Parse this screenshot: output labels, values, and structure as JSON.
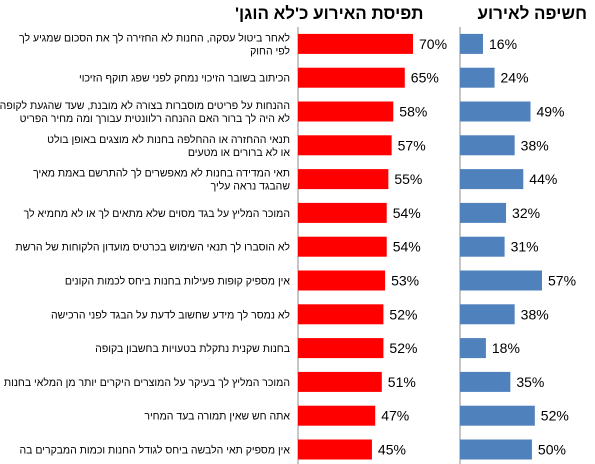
{
  "headings": {
    "exposure": "חשיפה לאירוע",
    "perception": "תפיסת האירוע כ'לא הוגן'"
  },
  "chart_data": {
    "type": "bar",
    "orientation": "horizontal",
    "categories": [
      [
        "לאחר ביטול עסקה, החנות לא החזירה לך את הסכום שמגיע לך",
        "לפי החוק"
      ],
      [
        "הכיתוב בשובר הזיכוי נמחק לפני שפג תוקף הזיכוי"
      ],
      [
        "ההנחות על פריטים מוסברות בצורה לא מובנת, שעד שהגעת לקופה",
        "לא היה לך ברור האם ההנחה רלוונטית עבורך ומה מחיר הפריט"
      ],
      [
        "תנאי ההחזרה או ההחלפה בחנות לא מוצגים באופן בולט",
        "או לא ברורים או מטעים"
      ],
      [
        "תאי המדידה בחנות לא מאפשרים לך להתרשם באמת מאיך",
        "שהבגד נראה עליך"
      ],
      [
        "המוכר המליץ על בגד מסוים שלא מתאים לך או לא מחמיא לך"
      ],
      [
        "לא הוסברו לך תנאי השימוש בכרטיס מועדון הלקוחות של הרשת"
      ],
      [
        "אין מספיק קופות פעילות בחנות ביחס לכמות הקונים"
      ],
      [
        "לא נמסר לך מידע שחשוב לדעת על הבגד לפני הרכישה"
      ],
      [
        "בחנות שקנית נתקלת בטעויות בחשבון בקופה"
      ],
      [
        "המוכר המליץ לך בעיקר על המוצרים היקרים יותר מן המלאי בחנות"
      ],
      [
        "אתה חש שאין תמורה בעד המחיר"
      ],
      [
        "אין מספיק תאי הלבשה ביחס לגודל החנות וכמות המבקרים בה"
      ]
    ],
    "series": [
      {
        "name": "תפיסת האירוע כ'לא הוגן'",
        "color": "#ff0000",
        "values": [
          70,
          65,
          58,
          57,
          55,
          54,
          54,
          53,
          52,
          52,
          51,
          47,
          45
        ],
        "labels": [
          "70%",
          "65%",
          "58%",
          "57%",
          "55%",
          "54%",
          "54%",
          "53%",
          "52%",
          "52%",
          "51%",
          "47%",
          "45%"
        ]
      },
      {
        "name": "חשיפה לאירוע",
        "color": "#4f81bd",
        "values": [
          16,
          24,
          49,
          38,
          44,
          32,
          31,
          57,
          38,
          18,
          35,
          52,
          50
        ],
        "labels": [
          "16%",
          "24%",
          "49%",
          "38%",
          "44%",
          "32%",
          "31%",
          "57%",
          "38%",
          "18%",
          "35%",
          "52%",
          "50%"
        ]
      }
    ],
    "unit": "%",
    "grid": false,
    "legend": "none"
  }
}
